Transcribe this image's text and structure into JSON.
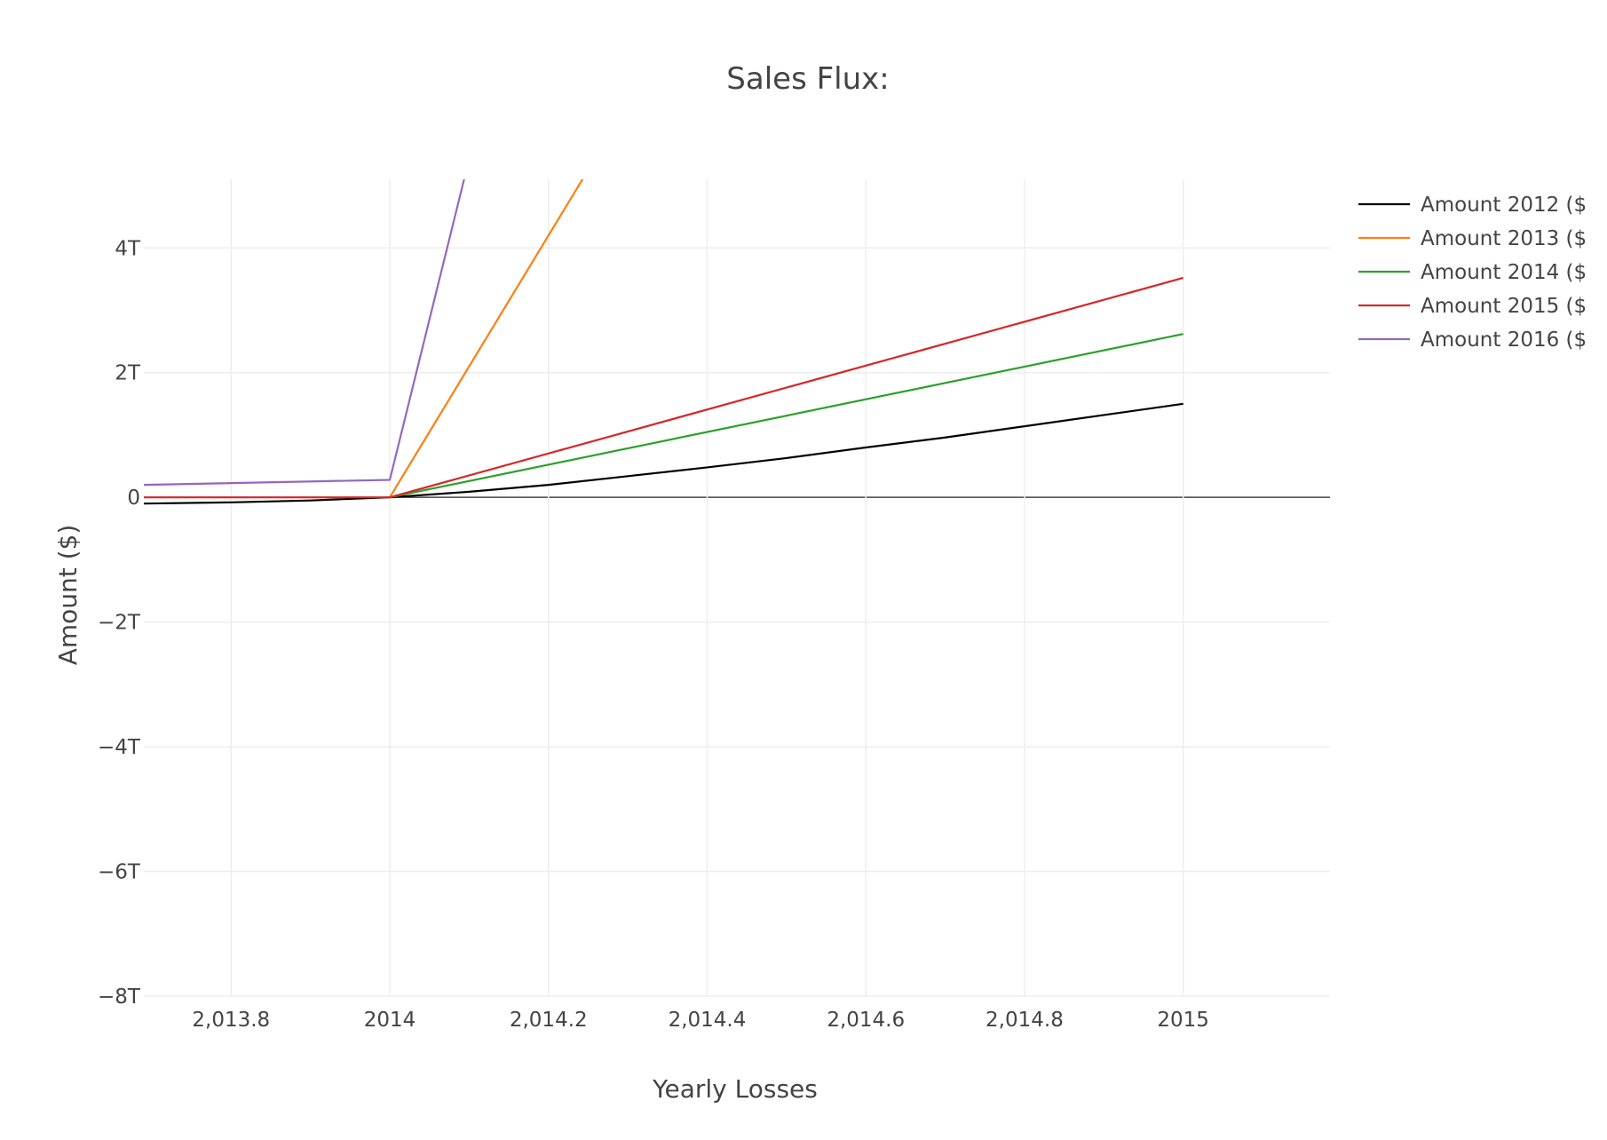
{
  "chart_data": {
    "type": "line",
    "title": "Sales Flux:",
    "xlabel": "Yearly Losses",
    "ylabel": "Amount ($)",
    "xlim": [
      2013.69,
      2015.185
    ],
    "ylim": [
      -8000000000000.0,
      5100000000000.0
    ],
    "x_ticks": [
      {
        "value": 2013.8,
        "label": "2,013.8"
      },
      {
        "value": 2014.0,
        "label": "2014"
      },
      {
        "value": 2014.2,
        "label": "2,014.2"
      },
      {
        "value": 2014.4,
        "label": "2,014.4"
      },
      {
        "value": 2014.6,
        "label": "2,014.6"
      },
      {
        "value": 2014.8,
        "label": "2,014.8"
      },
      {
        "value": 2015.0,
        "label": "2015"
      }
    ],
    "y_ticks": [
      {
        "value": 4000000000000.0,
        "label": "4T"
      },
      {
        "value": 2000000000000.0,
        "label": "2T"
      },
      {
        "value": 0,
        "label": "0"
      },
      {
        "value": -2000000000000.0,
        "label": "−2T"
      },
      {
        "value": -4000000000000.0,
        "label": "−4T"
      },
      {
        "value": -6000000000000.0,
        "label": "−6T"
      },
      {
        "value": -8000000000000.0,
        "label": "−8T"
      }
    ],
    "grid": true,
    "legend_position": "top-right",
    "series": [
      {
        "name": "Amount 2012 ($",
        "color": "#000000",
        "x": [
          2013.69,
          2013.8,
          2013.9,
          2014.0,
          2014.1,
          2014.2,
          2014.3,
          2014.4,
          2014.5,
          2014.6,
          2014.7,
          2014.8,
          2014.9,
          2015.0
        ],
        "y": [
          -100000000000.0,
          -80000000000.0,
          -50000000000.0,
          0.0,
          90000000000.0,
          200000000000.0,
          340000000000.0,
          480000000000.0,
          630000000000.0,
          800000000000.0,
          960000000000.0,
          1140000000000.0,
          1320000000000.0,
          1500000000000.0
        ]
      },
      {
        "name": "Amount 2013 ($",
        "color": "#ff7f0e",
        "x": [
          2014.0,
          2014.3
        ],
        "y": [
          0.0,
          6300000000000.0
        ]
      },
      {
        "name": "Amount 2014 ($",
        "color": "#2ca02c",
        "x": [
          2014.0,
          2015.0
        ],
        "y": [
          0.0,
          2620000000000.0
        ]
      },
      {
        "name": "Amount 2015 ($",
        "color": "#d62728",
        "x": [
          2013.69,
          2014.0,
          2015.0
        ],
        "y": [
          0.0,
          0.0,
          3520000000000.0
        ]
      },
      {
        "name": "Amount 2016 ($",
        "color": "#9467bd",
        "x": [
          2013.69,
          2014.0,
          2014.15
        ],
        "y": [
          200000000000.0,
          280000000000.0,
          8000000000000.0
        ]
      }
    ]
  }
}
